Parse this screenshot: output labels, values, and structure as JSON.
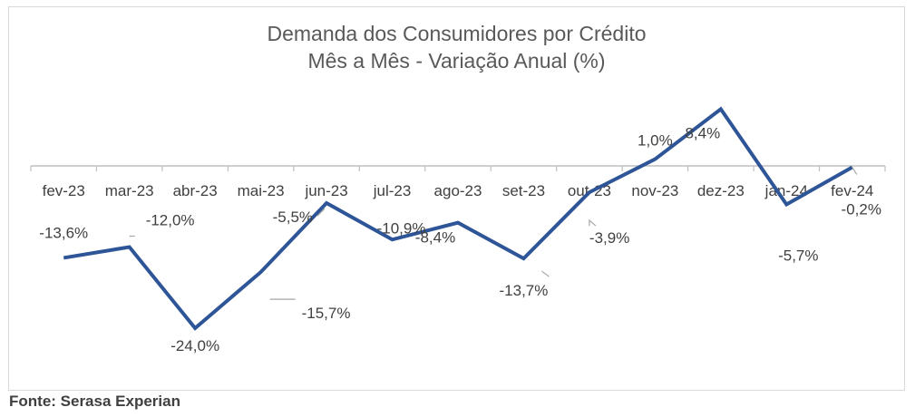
{
  "chart_data": {
    "type": "line",
    "title": "Demanda dos Consumidores por Crédito",
    "subtitle": "Mês a Mês - Variação Anual (%)",
    "categories": [
      "fev-23",
      "mar-23",
      "abr-23",
      "mai-23",
      "jun-23",
      "jul-23",
      "ago-23",
      "set-23",
      "out-23",
      "nov-23",
      "dez-23",
      "jan-24",
      "fev-24"
    ],
    "series": [
      {
        "values": [
          -13.6,
          -12.0,
          -24.0,
          -15.7,
          -5.5,
          -10.9,
          -8.4,
          -13.7,
          -3.9,
          1.0,
          8.4,
          -5.7,
          -0.2
        ],
        "labels": [
          "-13,6%",
          "-12,0%",
          "-24,0%",
          "-15,7%",
          "-5,5%",
          "-10,9%",
          "-8,4%",
          "-13,7%",
          "-3,9%",
          "1,0%",
          "8,4%",
          "-5,7%",
          "-0,2%"
        ],
        "color": "#2e5597"
      }
    ],
    "xlabel": "",
    "ylabel": "",
    "grid": false,
    "legend": false
  },
  "source": "Fonte: Serasa Experian"
}
